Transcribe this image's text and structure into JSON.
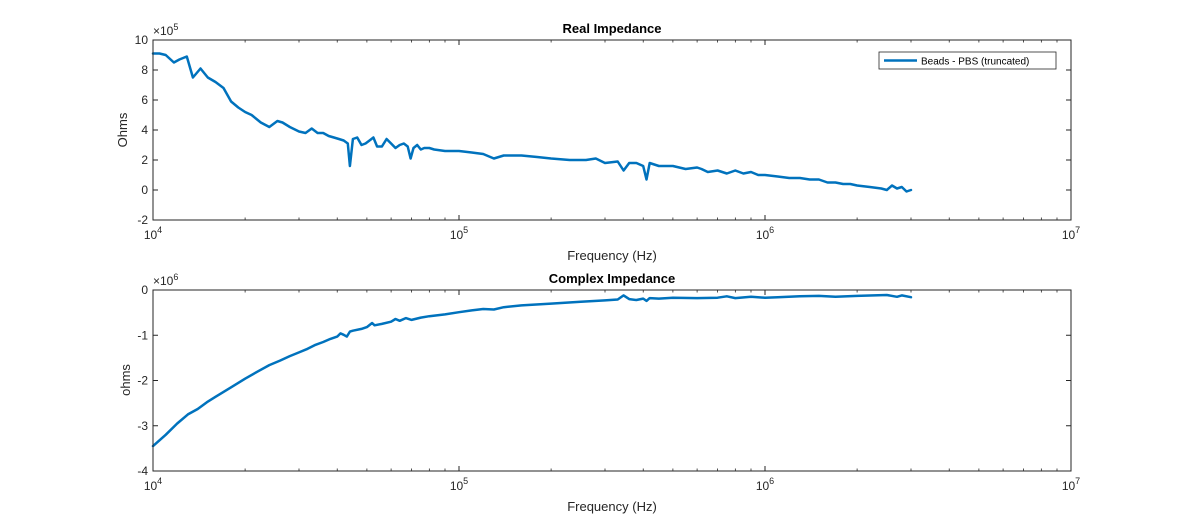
{
  "chart_data": [
    {
      "type": "line",
      "title": "Real Impedance",
      "xlabel": "Frequency (Hz)",
      "ylabel": "Ohms",
      "x_scale": "log",
      "xlim": [
        10000,
        10000000
      ],
      "ylim": [
        -200000,
        1000000
      ],
      "y_multiplier_label": "×10",
      "y_multiplier_exponent": "5",
      "x_ticks": [
        {
          "value": 10000,
          "base": "10",
          "exp": "4"
        },
        {
          "value": 100000,
          "base": "10",
          "exp": "5"
        },
        {
          "value": 1000000,
          "base": "10",
          "exp": "6"
        },
        {
          "value": 10000000,
          "base": "10",
          "exp": "7"
        }
      ],
      "y_ticks": [
        {
          "value": -200000,
          "label": "-2"
        },
        {
          "value": 0,
          "label": "0"
        },
        {
          "value": 200000,
          "label": "2"
        },
        {
          "value": 400000,
          "label": "4"
        },
        {
          "value": 600000,
          "label": "6"
        },
        {
          "value": 800000,
          "label": "8"
        },
        {
          "value": 1000000,
          "label": "10"
        }
      ],
      "legend": {
        "location": "top-right",
        "entries": [
          "Beads - PBS (truncated)"
        ]
      },
      "grid": false,
      "series": [
        {
          "name": "Beads - PBS (truncated)",
          "color": "#0072BD",
          "x": [
            10000,
            10500,
            11000,
            11700,
            12200,
            12900,
            13500,
            14300,
            15100,
            16000,
            17000,
            18000,
            19000,
            20000,
            21000,
            22500,
            24000,
            25500,
            26500,
            28000,
            30000,
            31500,
            33000,
            34500,
            36000,
            37500,
            39000,
            40500,
            42000,
            43300,
            44000,
            45000,
            46500,
            48000,
            49500,
            51000,
            52500,
            54000,
            56000,
            58000,
            60000,
            62000,
            64000,
            66000,
            68000,
            69500,
            71000,
            73000,
            75000,
            77000,
            80000,
            83000,
            90000,
            100000,
            110000,
            120000,
            130000,
            140000,
            160000,
            180000,
            200000,
            230000,
            260000,
            280000,
            300000,
            330000,
            345000,
            360000,
            380000,
            400000,
            410000,
            420000,
            450000,
            500000,
            550000,
            600000,
            620000,
            650000,
            700000,
            750000,
            800000,
            850000,
            900000,
            950000,
            1000000,
            1100000,
            1200000,
            1300000,
            1400000,
            1500000,
            1600000,
            1700000,
            1800000,
            1900000,
            2000000,
            2200000,
            2400000,
            2500000,
            2600000,
            2700000,
            2800000,
            2900000,
            3000000
          ],
          "y": [
            910000,
            910000,
            900000,
            850000,
            870000,
            890000,
            750000,
            810000,
            750000,
            720000,
            680000,
            590000,
            550000,
            520000,
            500000,
            450000,
            420000,
            460000,
            450000,
            420000,
            390000,
            380000,
            410000,
            380000,
            380000,
            360000,
            350000,
            340000,
            330000,
            310000,
            160000,
            340000,
            350000,
            300000,
            310000,
            330000,
            350000,
            290000,
            290000,
            340000,
            310000,
            280000,
            300000,
            310000,
            290000,
            210000,
            280000,
            300000,
            270000,
            280000,
            280000,
            270000,
            260000,
            260000,
            250000,
            240000,
            210000,
            230000,
            230000,
            220000,
            210000,
            200000,
            200000,
            210000,
            180000,
            190000,
            130000,
            180000,
            180000,
            160000,
            70000,
            180000,
            160000,
            160000,
            140000,
            150000,
            140000,
            120000,
            130000,
            110000,
            130000,
            110000,
            120000,
            100000,
            100000,
            90000,
            80000,
            80000,
            70000,
            70000,
            50000,
            50000,
            40000,
            40000,
            30000,
            20000,
            10000,
            0,
            30000,
            10000,
            20000,
            -10000,
            0
          ]
        }
      ]
    },
    {
      "type": "line",
      "title": "Complex Impedance",
      "xlabel": "Frequency (Hz)",
      "ylabel": "ohms",
      "x_scale": "log",
      "xlim": [
        10000,
        10000000
      ],
      "ylim": [
        -4000000,
        0
      ],
      "y_multiplier_label": "×10",
      "y_multiplier_exponent": "6",
      "x_ticks": [
        {
          "value": 10000,
          "base": "10",
          "exp": "4"
        },
        {
          "value": 100000,
          "base": "10",
          "exp": "5"
        },
        {
          "value": 1000000,
          "base": "10",
          "exp": "6"
        },
        {
          "value": 10000000,
          "base": "10",
          "exp": "7"
        }
      ],
      "y_ticks": [
        {
          "value": -4000000,
          "label": "-4"
        },
        {
          "value": -3000000,
          "label": "-3"
        },
        {
          "value": -2000000,
          "label": "-2"
        },
        {
          "value": -1000000,
          "label": "-1"
        },
        {
          "value": 0,
          "label": "0"
        }
      ],
      "grid": false,
      "series": [
        {
          "color": "#0072BD",
          "x": [
            10000,
            11000,
            12000,
            13000,
            14000,
            15000,
            16000,
            18000,
            20000,
            22000,
            24000,
            26000,
            28000,
            30000,
            32000,
            34000,
            36000,
            38000,
            40000,
            41000,
            42000,
            43000,
            44000,
            45000,
            48000,
            50000,
            52000,
            53000,
            56000,
            60000,
            62000,
            64000,
            67000,
            70000,
            75000,
            80000,
            90000,
            100000,
            110000,
            120000,
            130000,
            140000,
            160000,
            200000,
            250000,
            300000,
            330000,
            345000,
            360000,
            380000,
            400000,
            410000,
            420000,
            450000,
            500000,
            600000,
            700000,
            750000,
            800000,
            900000,
            1000000,
            1100000,
            1300000,
            1500000,
            1700000,
            2000000,
            2500000,
            2700000,
            2800000,
            3000000
          ],
          "y": [
            -3450000,
            -3200000,
            -2950000,
            -2750000,
            -2630000,
            -2480000,
            -2360000,
            -2150000,
            -1960000,
            -1800000,
            -1660000,
            -1560000,
            -1460000,
            -1380000,
            -1300000,
            -1210000,
            -1150000,
            -1080000,
            -1030000,
            -960000,
            -990000,
            -1030000,
            -920000,
            -900000,
            -860000,
            -820000,
            -730000,
            -780000,
            -750000,
            -700000,
            -640000,
            -680000,
            -620000,
            -660000,
            -610000,
            -580000,
            -540000,
            -490000,
            -450000,
            -420000,
            -430000,
            -380000,
            -340000,
            -300000,
            -260000,
            -230000,
            -210000,
            -120000,
            -200000,
            -220000,
            -190000,
            -240000,
            -180000,
            -190000,
            -170000,
            -180000,
            -170000,
            -140000,
            -180000,
            -150000,
            -170000,
            -160000,
            -140000,
            -130000,
            -150000,
            -130000,
            -110000,
            -150000,
            -120000,
            -160000
          ]
        }
      ]
    }
  ]
}
